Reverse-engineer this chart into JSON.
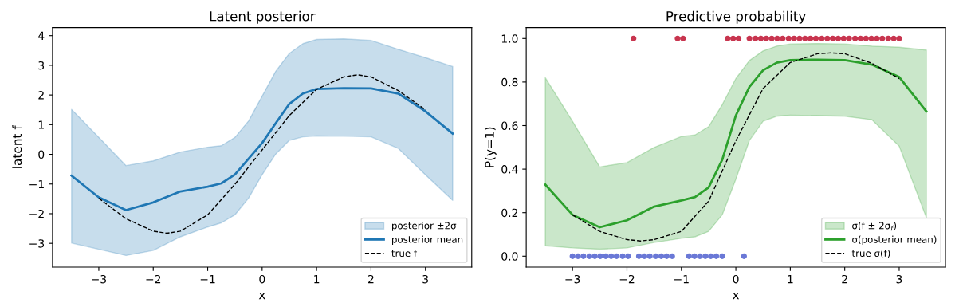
{
  "chart_data": [
    {
      "type": "line",
      "title": "Latent posterior",
      "xlabel": "x",
      "ylabel": "latent f",
      "annotations": [
        "posterior ±2σ"
      ],
      "xlim": [
        -3.85,
        3.85
      ],
      "ylim": [
        -3.8,
        4.27
      ],
      "xticks": [
        {
          "value": -3,
          "label": "−3"
        },
        {
          "value": -2,
          "label": "−2"
        },
        {
          "value": -1,
          "label": "−1"
        },
        0,
        1,
        2,
        3
      ],
      "yticks": [
        {
          "value": -3,
          "label": "−3"
        },
        {
          "value": -2,
          "label": "−2"
        },
        {
          "value": -1,
          "label": "−1"
        },
        0,
        1,
        2,
        3,
        4
      ],
      "grid": false,
      "legend": "lower right",
      "series": [
        {
          "type": "line",
          "name": "posterior mean",
          "color": "#1f77b4",
          "line_style": "solid",
          "x": [
            -3.5,
            -3,
            -2.5,
            -2,
            -1.5,
            -1,
            -0.75,
            -0.5,
            -0.25,
            0,
            0.25,
            0.5,
            0.75,
            1,
            1.5,
            2,
            2.5,
            3,
            3.5
          ],
          "values": [
            -0.72,
            -1.45,
            -1.88,
            -1.62,
            -1.25,
            -1.09,
            -0.98,
            -0.68,
            -0.15,
            0.38,
            1.05,
            1.7,
            2.05,
            2.2,
            2.23,
            2.22,
            2.05,
            1.45,
            0.7
          ],
          "lower": [
            -2.99,
            -3.2,
            -3.41,
            -3.24,
            -2.78,
            -2.45,
            -2.31,
            -2.04,
            -1.48,
            -0.69,
            0.01,
            0.47,
            0.59,
            0.62,
            0.61,
            0.59,
            0.2,
            -0.69,
            -1.55
          ],
          "upper": [
            1.51,
            0.57,
            -0.38,
            -0.22,
            0.08,
            0.24,
            0.29,
            0.57,
            1.12,
            1.96,
            2.8,
            3.4,
            3.73,
            3.87,
            3.89,
            3.84,
            3.54,
            3.26,
            2.96
          ]
        },
        {
          "type": "line",
          "name": "true f",
          "color": "#000000",
          "line_style": "dashed",
          "x": [
            -3,
            -2.5,
            -2,
            -1.75,
            -1.5,
            -1,
            -0.5,
            0,
            0.5,
            1,
            1.5,
            1.75,
            2,
            2.5,
            3
          ],
          "values": [
            -1.48,
            -2.17,
            -2.59,
            -2.66,
            -2.59,
            -2.04,
            -1.01,
            0.15,
            1.31,
            2.19,
            2.61,
            2.68,
            2.61,
            2.15,
            1.5
          ]
        }
      ]
    },
    {
      "type": "line",
      "title": "Predictive probability",
      "xlabel": "x",
      "ylabel": "P(y=1)",
      "annotations": [
        "σ(f ± 2σ$_{f}$)"
      ],
      "xlim": [
        -3.85,
        3.85
      ],
      "ylim": [
        -0.05,
        1.05
      ],
      "xticks": [
        {
          "value": -3,
          "label": "−3"
        },
        {
          "value": -2,
          "label": "−2"
        },
        {
          "value": -1,
          "label": "−1"
        },
        0,
        1,
        2,
        3
      ],
      "yticks": [
        {
          "value": 0,
          "label": "0.0"
        },
        0.2,
        0.4,
        0.6,
        0.8,
        {
          "value": 1,
          "label": "1.0"
        }
      ],
      "grid": false,
      "legend": "lower right",
      "series": [
        {
          "type": "line",
          "name": "σ(posterior mean)",
          "color": "#2ca02c",
          "line_style": "solid",
          "x": [
            -3.5,
            -3,
            -2.5,
            -2,
            -1.5,
            -1,
            -0.75,
            -0.5,
            -0.25,
            0,
            0.25,
            0.5,
            0.75,
            1,
            1.5,
            2,
            2.5,
            3,
            3.5
          ],
          "values": [
            0.329,
            0.19,
            0.133,
            0.165,
            0.228,
            0.256,
            0.272,
            0.316,
            0.443,
            0.646,
            0.778,
            0.854,
            0.889,
            0.901,
            0.903,
            0.901,
            0.88,
            0.823,
            0.665
          ],
          "lower": [
            0.048,
            0.038,
            0.032,
            0.038,
            0.063,
            0.082,
            0.089,
            0.114,
            0.19,
            0.354,
            0.532,
            0.62,
            0.643,
            0.648,
            0.646,
            0.643,
            0.627,
            0.506,
            0.177
          ],
          "upper": [
            0.82,
            0.62,
            0.41,
            0.43,
            0.5,
            0.55,
            0.557,
            0.595,
            0.696,
            0.816,
            0.899,
            0.943,
            0.965,
            0.975,
            0.977,
            0.975,
            0.965,
            0.96,
            0.947
          ]
        },
        {
          "type": "line",
          "name": "true σ(f)",
          "color": "#000000",
          "line_style": "dashed",
          "x": [
            -3,
            -2.5,
            -2,
            -1.75,
            -1.5,
            -1,
            -0.5,
            0,
            0.5,
            1,
            1.5,
            1.75,
            2,
            2.5,
            3
          ],
          "values": [
            0.19,
            0.114,
            0.076,
            0.07,
            0.076,
            0.114,
            0.253,
            0.53,
            0.77,
            0.89,
            0.93,
            0.934,
            0.93,
            0.886,
            0.816
          ]
        },
        {
          "type": "scatter",
          "color": "#6a78d6",
          "marker": "circle",
          "x": [
            -3.0,
            -2.9,
            -2.8,
            -2.69,
            -2.59,
            -2.49,
            -2.39,
            -2.29,
            -2.19,
            -2.08,
            -1.98,
            -1.78,
            -1.68,
            -1.58,
            -1.47,
            -1.37,
            -1.27,
            -1.17,
            -0.86,
            -0.76,
            -0.66,
            -0.56,
            -0.46,
            -0.36,
            -0.25,
            0.15
          ],
          "values": [
            0,
            0,
            0,
            0,
            0,
            0,
            0,
            0,
            0,
            0,
            0,
            0,
            0,
            0,
            0,
            0,
            0,
            0,
            0,
            0,
            0,
            0,
            0,
            0,
            0,
            0
          ]
        },
        {
          "type": "scatter",
          "color": "#c8354f",
          "marker": "circle",
          "x": [
            -1.88,
            -1.07,
            -0.97,
            -0.15,
            -0.05,
            0.05,
            0.25,
            0.36,
            0.46,
            0.56,
            0.66,
            0.76,
            0.86,
            0.97,
            1.07,
            1.17,
            1.27,
            1.37,
            1.47,
            1.58,
            1.68,
            1.78,
            1.88,
            1.98,
            2.08,
            2.19,
            2.29,
            2.39,
            2.49,
            2.59,
            2.69,
            2.8,
            2.9,
            3.0
          ],
          "values": [
            1,
            1,
            1,
            1,
            1,
            1,
            1,
            1,
            1,
            1,
            1,
            1,
            1,
            1,
            1,
            1,
            1,
            1,
            1,
            1,
            1,
            1,
            1,
            1,
            1,
            1,
            1,
            1,
            1,
            1,
            1,
            1,
            1,
            1
          ]
        }
      ]
    }
  ]
}
